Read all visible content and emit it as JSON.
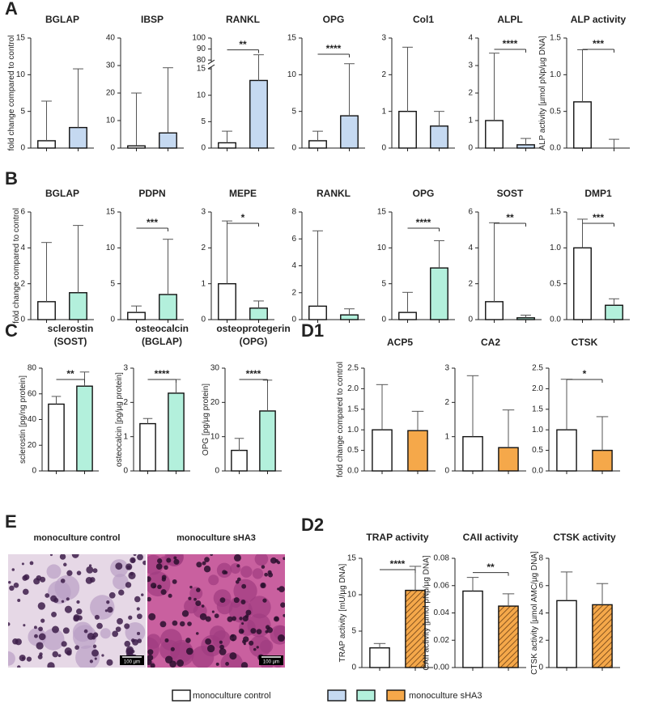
{
  "panels": [
    "A",
    "B",
    "C",
    "D1",
    "E",
    "D2"
  ],
  "chart_data": [
    {
      "type": "bar",
      "title": "BGLAP",
      "ylabel": "fold change compared to control",
      "categories": [
        null,
        null
      ],
      "values": [
        1,
        2.8
      ],
      "errors": [
        5.4,
        8.0
      ],
      "colors": [
        "#ffffff",
        "#c5d9f1"
      ],
      "ylim": [
        0,
        15
      ],
      "yticks": [
        0,
        5,
        10,
        15
      ]
    },
    {
      "type": "bar",
      "title": "IBSP",
      "categories": [
        null,
        null
      ],
      "values": [
        0.8,
        5.5
      ],
      "errors": [
        19.2,
        23.7
      ],
      "colors": [
        "#ffffff",
        "#c5d9f1"
      ],
      "ylim": [
        0,
        40
      ],
      "yticks": [
        0,
        10,
        20,
        30,
        40
      ]
    },
    {
      "type": "bar",
      "title": "RANKL",
      "categories": [
        null,
        null
      ],
      "values": [
        1,
        12.8
      ],
      "errors": [
        2.2,
        72
      ],
      "colors": [
        "#ffffff",
        "#c5d9f1"
      ],
      "ylim": [
        0,
        100
      ],
      "ybreak": [
        15,
        80
      ],
      "yticks": [
        0,
        5,
        10,
        15,
        80,
        90,
        100
      ],
      "annotation": "**"
    },
    {
      "type": "bar",
      "title": "OPG",
      "categories": [
        null,
        null
      ],
      "values": [
        1,
        4.4
      ],
      "errors": [
        1.3,
        7.1
      ],
      "colors": [
        "#ffffff",
        "#c5d9f1"
      ],
      "ylim": [
        0,
        15
      ],
      "yticks": [
        0,
        5,
        10,
        15
      ],
      "annotation": "****"
    },
    {
      "type": "bar",
      "title": "Col1",
      "categories": [
        null,
        null
      ],
      "values": [
        1,
        0.6
      ],
      "errors": [
        1.75,
        0.4
      ],
      "colors": [
        "#ffffff",
        "#c5d9f1"
      ],
      "ylim": [
        0,
        3
      ],
      "yticks": [
        0,
        1,
        2,
        3
      ]
    },
    {
      "type": "bar",
      "title": "ALPL",
      "categories": [
        null,
        null
      ],
      "values": [
        1,
        0.12
      ],
      "errors": [
        2.45,
        0.23
      ],
      "colors": [
        "#ffffff",
        "#c5d9f1"
      ],
      "ylim": [
        0,
        4
      ],
      "yticks": [
        0,
        1,
        2,
        3,
        4
      ],
      "annotation": "****"
    },
    {
      "type": "bar",
      "title": "ALP activity",
      "ylabel": "ALP activity [µmol pNp/µg DNA]",
      "categories": [
        null,
        null
      ],
      "values": [
        0.63,
        0
      ],
      "errors": [
        0.71,
        0.12
      ],
      "colors": [
        "#ffffff",
        "#c5d9f1"
      ],
      "ylim": [
        0,
        1.5
      ],
      "yticks": [
        {
          "value": 0,
          "label": "0.0"
        },
        {
          "value": 0.5,
          "label": "0.5"
        },
        {
          "value": 1,
          "label": "1.0"
        },
        {
          "value": 1.5,
          "label": "1.5"
        }
      ],
      "annotation": "***"
    },
    {
      "type": "bar",
      "title": "BGLAP",
      "ylabel": "fold change compared to control",
      "categories": [
        null,
        null
      ],
      "values": [
        1,
        1.5
      ],
      "errors": [
        3.3,
        3.75
      ],
      "colors": [
        "#ffffff",
        "#b3f0dc"
      ],
      "ylim": [
        0,
        6
      ],
      "yticks": [
        0,
        2,
        4,
        6
      ]
    },
    {
      "type": "bar",
      "title": "PDPN",
      "categories": [
        null,
        null
      ],
      "values": [
        1,
        3.5
      ],
      "errors": [
        0.9,
        7.7
      ],
      "colors": [
        "#ffffff",
        "#b3f0dc"
      ],
      "ylim": [
        0,
        15
      ],
      "yticks": [
        0,
        5,
        10,
        15
      ],
      "annotation": "***"
    },
    {
      "type": "bar",
      "title": "MEPE",
      "categories": [
        null,
        null
      ],
      "values": [
        1,
        0.32
      ],
      "errors": [
        1.75,
        0.2
      ],
      "colors": [
        "#ffffff",
        "#b3f0dc"
      ],
      "ylim": [
        0,
        3
      ],
      "yticks": [
        0,
        1,
        2,
        3
      ],
      "annotation": "*"
    },
    {
      "type": "bar",
      "title": "RANKL",
      "categories": [
        null,
        null
      ],
      "values": [
        1,
        0.35
      ],
      "errors": [
        5.6,
        0.45
      ],
      "colors": [
        "#ffffff",
        "#b3f0dc"
      ],
      "ylim": [
        0,
        8
      ],
      "yticks": [
        0,
        2,
        4,
        6,
        8
      ]
    },
    {
      "type": "bar",
      "title": "OPG",
      "categories": [
        null,
        null
      ],
      "values": [
        1,
        7.2
      ],
      "errors": [
        2.8,
        3.8
      ],
      "colors": [
        "#ffffff",
        "#b3f0dc"
      ],
      "ylim": [
        0,
        15
      ],
      "yticks": [
        0,
        5,
        10,
        15
      ],
      "annotation": "****"
    },
    {
      "type": "bar",
      "title": "SOST",
      "categories": [
        null,
        null
      ],
      "values": [
        1,
        0.1
      ],
      "errors": [
        4.4,
        0.15
      ],
      "colors": [
        "#ffffff",
        "#b3f0dc"
      ],
      "ylim": [
        0,
        6
      ],
      "yticks": [
        0,
        2,
        4,
        6
      ],
      "annotation": "**"
    },
    {
      "type": "bar",
      "title": "DMP1",
      "categories": [
        null,
        null
      ],
      "values": [
        1,
        0.2
      ],
      "errors": [
        0.4,
        0.09
      ],
      "colors": [
        "#ffffff",
        "#b3f0dc"
      ],
      "ylim": [
        0,
        1.5
      ],
      "yticks": [
        {
          "value": 0,
          "label": "0.0"
        },
        {
          "value": 0.5,
          "label": "0.5"
        },
        {
          "value": 1,
          "label": "1.0"
        },
        {
          "value": 1.5,
          "label": "1.5"
        }
      ],
      "annotation": "***"
    },
    {
      "type": "bar",
      "title": "sclerostin",
      "subtitle": "(SOST)",
      "ylabel": "sclerostin [pg/ng protein]",
      "categories": [
        null,
        null
      ],
      "values": [
        52,
        66
      ],
      "errors": [
        6,
        11
      ],
      "colors": [
        "#ffffff",
        "#b3f0dc"
      ],
      "ylim": [
        0,
        80
      ],
      "yticks": [
        0,
        20,
        40,
        60,
        80
      ],
      "annotation": "**"
    },
    {
      "type": "bar",
      "title": "osteocalcin",
      "subtitle": "(BGLAP)",
      "ylabel": "osteocalcin [pg/µg protein]",
      "categories": [
        null,
        null
      ],
      "values": [
        1.38,
        2.27
      ],
      "errors": [
        0.15,
        0.4
      ],
      "colors": [
        "#ffffff",
        "#b3f0dc"
      ],
      "ylim": [
        0,
        3
      ],
      "yticks": [
        0,
        1,
        2,
        3
      ],
      "annotation": "****"
    },
    {
      "type": "bar",
      "title": "osteoprotegerin",
      "subtitle": "(OPG)",
      "ylabel": "OPG [pg/µg protein]",
      "categories": [
        null,
        null
      ],
      "values": [
        6,
        17.5
      ],
      "errors": [
        3.5,
        9
      ],
      "colors": [
        "#ffffff",
        "#b3f0dc"
      ],
      "ylim": [
        0,
        30
      ],
      "yticks": [
        0,
        10,
        20,
        30
      ],
      "annotation": "****"
    },
    {
      "type": "bar",
      "title": "ACP5",
      "ylabel": "fold change compared to control",
      "categories": [
        null,
        null
      ],
      "values": [
        1,
        0.98
      ],
      "errors": [
        1.1,
        0.47
      ],
      "colors": [
        "#ffffff",
        "#f5a84a"
      ],
      "ylim": [
        0,
        2.5
      ],
      "yticks": [
        {
          "value": 0,
          "label": "0.0"
        },
        {
          "value": 0.5,
          "label": "0.5"
        },
        {
          "value": 1,
          "label": "1.0"
        },
        {
          "value": 1.5,
          "label": "1.5"
        },
        {
          "value": 2,
          "label": "2.0"
        },
        {
          "value": 2.5,
          "label": "2.5"
        }
      ]
    },
    {
      "type": "bar",
      "title": "CA2",
      "categories": [
        null,
        null
      ],
      "values": [
        1,
        0.68
      ],
      "errors": [
        1.78,
        1.1
      ],
      "colors": [
        "#ffffff",
        "#f5a84a"
      ],
      "ylim": [
        0,
        3
      ],
      "yticks": [
        0,
        1,
        2,
        3
      ]
    },
    {
      "type": "bar",
      "title": "CTSK",
      "categories": [
        null,
        null
      ],
      "values": [
        1,
        0.5
      ],
      "errors": [
        1.23,
        0.82
      ],
      "colors": [
        "#ffffff",
        "#f5a84a"
      ],
      "ylim": [
        0,
        2.5
      ],
      "yticks": [
        {
          "value": 0,
          "label": "0.0"
        },
        {
          "value": 0.5,
          "label": "0.5"
        },
        {
          "value": 1,
          "label": "1.0"
        },
        {
          "value": 1.5,
          "label": "1.5"
        },
        {
          "value": 2,
          "label": "2.0"
        },
        {
          "value": 2.5,
          "label": "2.5"
        }
      ],
      "annotation": "*"
    },
    {
      "type": "bar",
      "title": "TRAP activity",
      "ylabel": "TRAP activity [mU/µg DNA]",
      "categories": [
        null,
        null
      ],
      "values": [
        2.7,
        10.6
      ],
      "errors": [
        0.6,
        3.3
      ],
      "colors": [
        "#ffffff",
        "#f5a84a"
      ],
      "hatch": true,
      "ylim": [
        0,
        15
      ],
      "yticks": [
        0,
        5,
        10,
        15
      ],
      "annotation": "****"
    },
    {
      "type": "bar",
      "title": "CAII activity",
      "ylabel": "CAII activity [µmol pNp/µg DNA]",
      "categories": [
        null,
        null
      ],
      "values": [
        0.056,
        0.045
      ],
      "errors": [
        0.01,
        0.009
      ],
      "colors": [
        "#ffffff",
        "#f5a84a"
      ],
      "hatch": true,
      "ylim": [
        0,
        0.08
      ],
      "yticks": [
        {
          "value": 0,
          "label": "0.00"
        },
        {
          "value": 0.02,
          "label": "0.02"
        },
        {
          "value": 0.04,
          "label": "0.04"
        },
        {
          "value": 0.06,
          "label": "0.06"
        },
        {
          "value": 0.08,
          "label": "0.08"
        }
      ],
      "annotation": "**"
    },
    {
      "type": "bar",
      "title": "CTSK activity",
      "ylabel": "CTSK activity [µmol AMC/µg DNA]",
      "categories": [
        null,
        null
      ],
      "values": [
        4.9,
        4.6
      ],
      "errors": [
        2.1,
        1.55
      ],
      "colors": [
        "#ffffff",
        "#f5a84a"
      ],
      "hatch": true,
      "ylim": [
        0,
        8
      ],
      "yticks": [
        0,
        2,
        4,
        6,
        8
      ]
    }
  ],
  "images": [
    {
      "title": "monoculture control",
      "scale_bar": "100 µm"
    },
    {
      "title": "monoculture sHA3",
      "scale_bar": "100 µm"
    }
  ],
  "legend": [
    {
      "name": "monoculture control",
      "colors": [
        "#ffffff"
      ]
    },
    {
      "name": "monoculture sHA3",
      "colors": [
        "#c5d9f1",
        "#b3f0dc",
        "#f5a84a"
      ]
    }
  ]
}
